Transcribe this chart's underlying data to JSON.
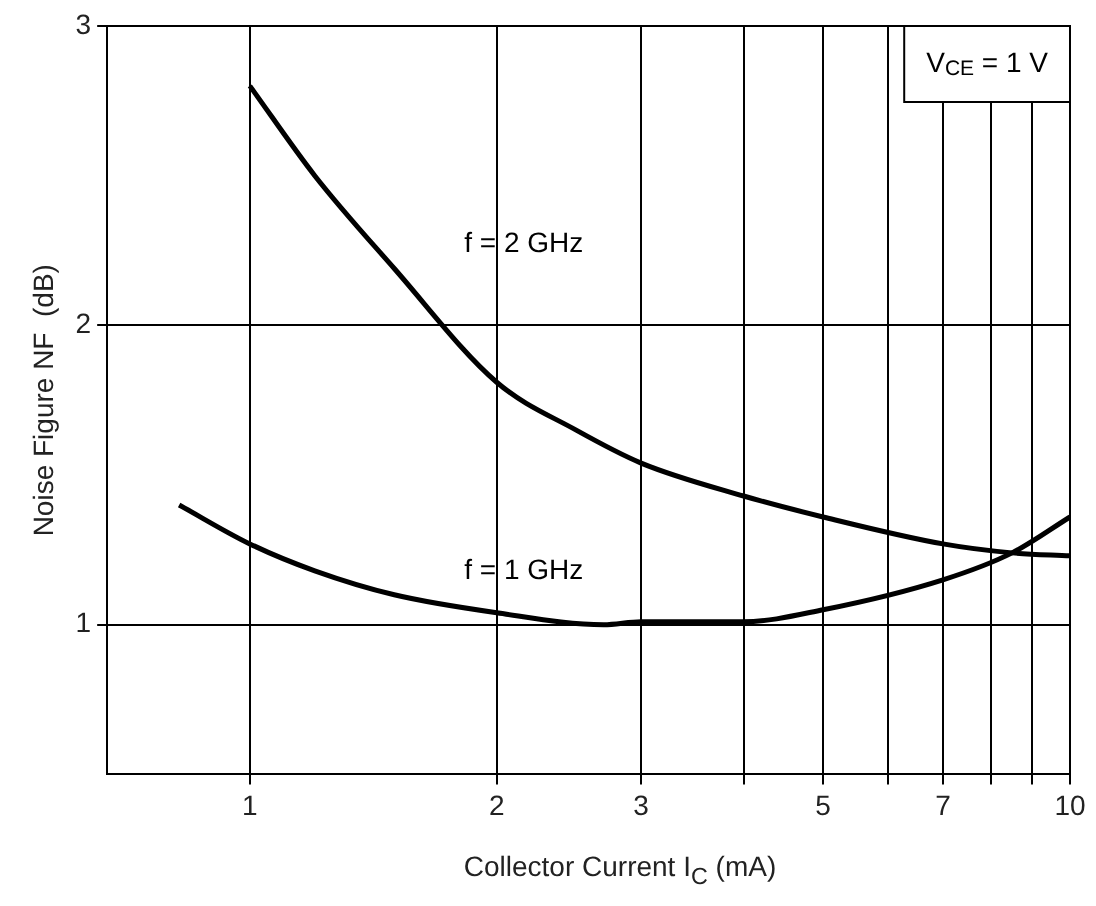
{
  "chart_data": {
    "type": "line",
    "xlabel": "Collector Current I$_{C}$ (mA)",
    "ylabel": "Noise Figure NF  (dB)",
    "log": "x",
    "xlim": [
      0.67,
      10
    ],
    "xticks": [
      1,
      2,
      3,
      {
        "value": 4,
        "label": null
      },
      5,
      {
        "value": 6,
        "label": null
      },
      7,
      {
        "value": 8,
        "label": null
      },
      {
        "value": 9,
        "label": null
      },
      10
    ],
    "ylim": [
      0.5,
      3
    ],
    "yticks": [
      1,
      2,
      3
    ],
    "grid": true,
    "legend": false,
    "marker": "none",
    "line_style": "solid",
    "series": [
      {
        "name": "f = 2 GHz",
        "color": "#000000",
        "x": [
          1,
          1.2,
          1.5,
          2,
          2.5,
          3,
          4,
          5,
          7,
          8.5,
          10
        ],
        "values": [
          2.8,
          2.5,
          2.19,
          1.81,
          1.65,
          1.54,
          1.43,
          1.36,
          1.27,
          1.24,
          1.23
        ]
      },
      {
        "name": "f = 1 GHz",
        "color": "#000000",
        "x": [
          0.82,
          1,
          1.2,
          1.5,
          2,
          2.7,
          3,
          4,
          5,
          7,
          8.5,
          10
        ],
        "values": [
          1.4,
          1.27,
          1.18,
          1.1,
          1.04,
          1.0,
          1.01,
          1.01,
          1.05,
          1.15,
          1.24,
          1.36
        ]
      }
    ],
    "annotations": [
      "V$_{CE}$ = 1 V"
    ]
  }
}
